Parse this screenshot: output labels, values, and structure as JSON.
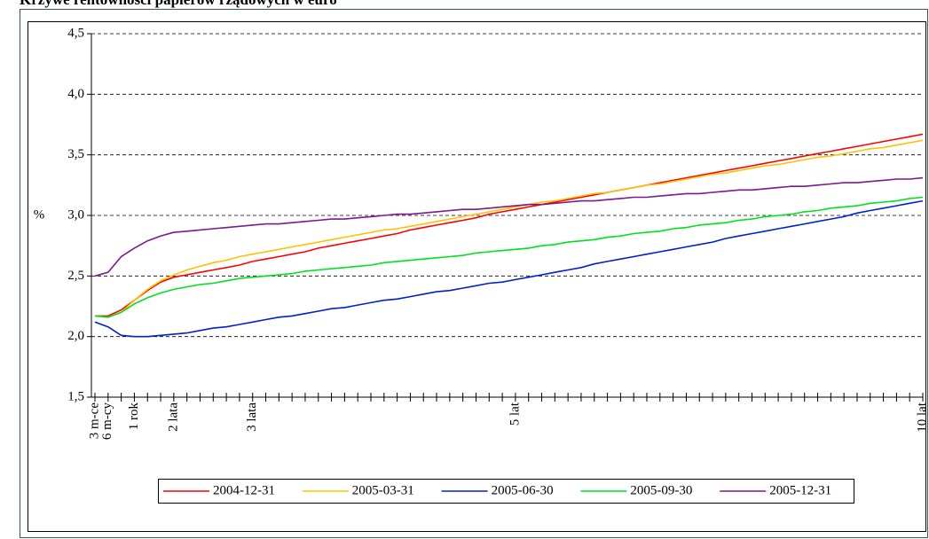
{
  "chart_data": {
    "type": "line",
    "title": "Krzywe rentowności papierów rządowych w euro",
    "y_label": "%",
    "categories": [
      "3 m-ce",
      "6 m-cy",
      null,
      "1 rok",
      null,
      null,
      "2 lata",
      null,
      null,
      null,
      null,
      null,
      "3 lata",
      null,
      null,
      null,
      null,
      null,
      null,
      null,
      null,
      null,
      null,
      null,
      null,
      null,
      null,
      null,
      null,
      null,
      null,
      null,
      "5 lat",
      null,
      null,
      null,
      null,
      null,
      null,
      null,
      null,
      null,
      null,
      null,
      null,
      null,
      null,
      null,
      null,
      null,
      null,
      null,
      null,
      null,
      null,
      null,
      null,
      null,
      null,
      null,
      null,
      null,
      null,
      "10 lat"
    ],
    "series": [
      {
        "name": "2004-12-31",
        "color": "#ff0000",
        "values": [
          2.17,
          2.17,
          2.22,
          2.3,
          2.38,
          2.45,
          2.49,
          2.51,
          2.53,
          2.55,
          2.57,
          2.59,
          2.62,
          2.64,
          2.66,
          2.68,
          2.7,
          2.73,
          2.75,
          2.77,
          2.79,
          2.81,
          2.83,
          2.85,
          2.88,
          2.9,
          2.92,
          2.94,
          2.96,
          2.98,
          3.01,
          3.03,
          3.05,
          3.07,
          3.09,
          3.11,
          3.13,
          3.15,
          3.17,
          3.19,
          3.21,
          3.23,
          3.25,
          3.27,
          3.29,
          3.31,
          3.33,
          3.35,
          3.37,
          3.39,
          3.41,
          3.43,
          3.45,
          3.47,
          3.49,
          3.51,
          3.53,
          3.55,
          3.57,
          3.59,
          3.61,
          3.63,
          3.65,
          3.67
        ]
      },
      {
        "name": "2005-03-31",
        "color": "#ffc000",
        "values": [
          2.17,
          2.16,
          2.2,
          2.3,
          2.39,
          2.46,
          2.51,
          2.55,
          2.58,
          2.61,
          2.63,
          2.66,
          2.68,
          2.7,
          2.72,
          2.74,
          2.76,
          2.78,
          2.8,
          2.82,
          2.84,
          2.86,
          2.88,
          2.89,
          2.91,
          2.93,
          2.95,
          2.97,
          2.99,
          3.01,
          3.03,
          3.05,
          3.07,
          3.09,
          3.11,
          3.12,
          3.14,
          3.16,
          3.18,
          3.19,
          3.21,
          3.23,
          3.25,
          3.26,
          3.28,
          3.3,
          3.32,
          3.34,
          3.35,
          3.37,
          3.39,
          3.41,
          3.42,
          3.44,
          3.46,
          3.48,
          3.49,
          3.51,
          3.53,
          3.55,
          3.56,
          3.58,
          3.6,
          3.62
        ]
      },
      {
        "name": "2005-06-30",
        "color": "#0020d0",
        "values": [
          2.12,
          2.08,
          2.01,
          2.0,
          2.0,
          2.01,
          2.02,
          2.03,
          2.05,
          2.07,
          2.08,
          2.1,
          2.12,
          2.14,
          2.16,
          2.17,
          2.19,
          2.21,
          2.23,
          2.24,
          2.26,
          2.28,
          2.3,
          2.31,
          2.33,
          2.35,
          2.37,
          2.38,
          2.4,
          2.42,
          2.44,
          2.45,
          2.47,
          2.49,
          2.51,
          2.53,
          2.55,
          2.57,
          2.6,
          2.62,
          2.64,
          2.66,
          2.68,
          2.7,
          2.72,
          2.74,
          2.76,
          2.78,
          2.81,
          2.83,
          2.85,
          2.87,
          2.89,
          2.91,
          2.93,
          2.95,
          2.97,
          2.99,
          3.02,
          3.04,
          3.06,
          3.08,
          3.1,
          3.12
        ]
      },
      {
        "name": "2005-09-30",
        "color": "#00e020",
        "values": [
          2.17,
          2.16,
          2.2,
          2.27,
          2.32,
          2.36,
          2.39,
          2.41,
          2.43,
          2.44,
          2.46,
          2.48,
          2.49,
          2.5,
          2.51,
          2.52,
          2.54,
          2.55,
          2.56,
          2.57,
          2.58,
          2.59,
          2.61,
          2.62,
          2.63,
          2.64,
          2.65,
          2.66,
          2.67,
          2.69,
          2.7,
          2.71,
          2.72,
          2.73,
          2.75,
          2.76,
          2.78,
          2.79,
          2.8,
          2.82,
          2.83,
          2.85,
          2.86,
          2.87,
          2.89,
          2.9,
          2.92,
          2.93,
          2.94,
          2.96,
          2.97,
          2.99,
          3.0,
          3.01,
          3.03,
          3.04,
          3.06,
          3.07,
          3.08,
          3.1,
          3.11,
          3.12,
          3.14,
          3.15
        ]
      },
      {
        "name": "2005-12-31",
        "color": "#7a1a8c",
        "values": [
          2.5,
          2.53,
          2.66,
          2.73,
          2.79,
          2.83,
          2.86,
          2.87,
          2.88,
          2.89,
          2.9,
          2.91,
          2.92,
          2.93,
          2.93,
          2.94,
          2.95,
          2.96,
          2.97,
          2.97,
          2.98,
          2.99,
          3.0,
          3.01,
          3.01,
          3.02,
          3.03,
          3.04,
          3.05,
          3.05,
          3.06,
          3.07,
          3.08,
          3.09,
          3.09,
          3.1,
          3.11,
          3.12,
          3.12,
          3.13,
          3.14,
          3.15,
          3.15,
          3.16,
          3.17,
          3.18,
          3.18,
          3.19,
          3.2,
          3.21,
          3.21,
          3.22,
          3.23,
          3.24,
          3.24,
          3.25,
          3.26,
          3.27,
          3.27,
          3.28,
          3.29,
          3.3,
          3.3,
          3.31
        ]
      }
    ],
    "ylim": [
      1.5,
      4.5
    ],
    "yticks": [
      {
        "value": 1.5,
        "label": "1,5"
      },
      {
        "value": 2,
        "label": "2,0"
      },
      {
        "value": 2.5,
        "label": "2,5"
      },
      {
        "value": 3,
        "label": "3,0"
      },
      {
        "value": 3.5,
        "label": "3,5"
      },
      {
        "value": 4,
        "label": "4,0"
      },
      {
        "value": 4.5,
        "label": "4,5"
      }
    ],
    "grid": true,
    "legend": "bottom"
  }
}
